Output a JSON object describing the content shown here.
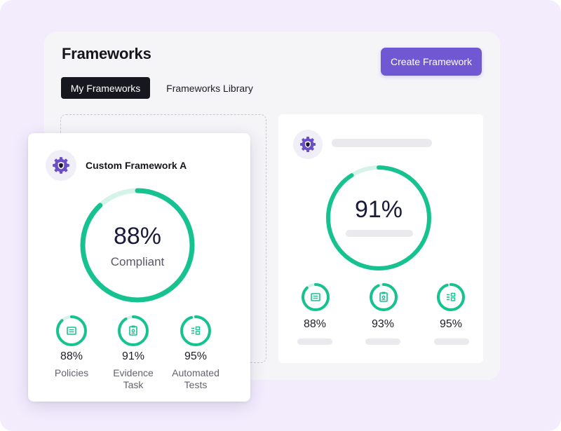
{
  "page": {
    "title": "Frameworks",
    "create_button": "Create Framework"
  },
  "tabs": [
    {
      "label": "My Frameworks",
      "active": true
    },
    {
      "label": "Frameworks Library",
      "active": false
    }
  ],
  "card_primary": {
    "name": "Custom Framework A",
    "icon": "shield-gear-icon",
    "overall_percent": "88%",
    "overall_value": 88,
    "overall_label": "Compliant",
    "metrics": [
      {
        "percent": "88%",
        "value": 88,
        "label_line1": "Policies",
        "label_line2": "",
        "icon": "document-icon"
      },
      {
        "percent": "91%",
        "value": 91,
        "label_line1": "Evidence",
        "label_line2": "Task",
        "icon": "clipboard-icon"
      },
      {
        "percent": "95%",
        "value": 95,
        "label_line1": "Automated",
        "label_line2": "Tests",
        "icon": "checklist-icon"
      }
    ]
  },
  "card_secondary": {
    "icon": "shield-gear-icon",
    "overall_percent": "91%",
    "overall_value": 91,
    "metrics": [
      {
        "percent": "88%",
        "value": 88,
        "icon": "document-icon"
      },
      {
        "percent": "93%",
        "value": 93,
        "icon": "clipboard-icon"
      },
      {
        "percent": "95%",
        "value": 95,
        "icon": "checklist-icon"
      }
    ]
  },
  "colors": {
    "accent": "#7058d2",
    "ring": "#17c291",
    "ring_track": "#d6f3e9",
    "background": "#f3ecfd"
  }
}
